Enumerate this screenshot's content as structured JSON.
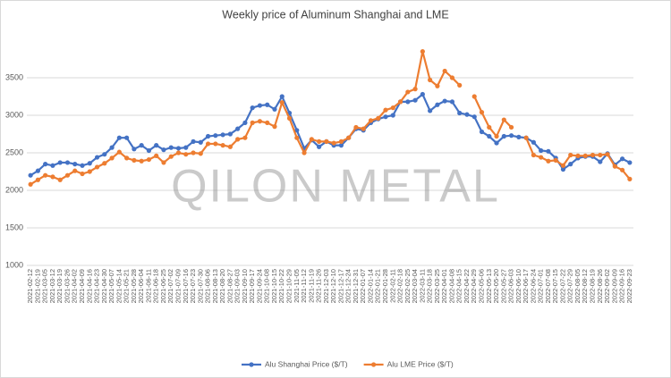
{
  "chart_data": {
    "type": "line",
    "title": "Weekly price of Aluminum Shanghai and LME",
    "categories": [
      "2021-02-12",
      "2021-02-19",
      "2021-03-05",
      "2021-03-12",
      "2021-03-19",
      "2021-03-26",
      "2021-04-02",
      "2021-04-09",
      "2021-04-16",
      "2021-04-23",
      "2021-04-30",
      "2021-05-07",
      "2021-05-14",
      "2021-05-21",
      "2021-05-28",
      "2021-06-04",
      "2021-06-11",
      "2021-06-18",
      "2021-06-25",
      "2021-07-02",
      "2021-07-09",
      "2021-07-16",
      "2021-07-23",
      "2021-07-30",
      "2021-08-06",
      "2021-08-13",
      "2021-08-20",
      "2021-08-27",
      "2021-09-03",
      "2021-09-10",
      "2021-09-17",
      "2021-09-24",
      "2021-10-08",
      "2021-10-15",
      "2021-10-22",
      "2021-10-29",
      "2021-11-05",
      "2021-11-12",
      "2021-11-19",
      "2021-11-26",
      "2021-12-03",
      "2021-12-10",
      "2021-12-17",
      "2021-12-24",
      "2021-12-31",
      "2022-01-07",
      "2022-01-14",
      "2022-01-21",
      "2022-01-28",
      "2022-02-11",
      "2022-02-18",
      "2022-02-25",
      "2022-03-04",
      "2022-03-11",
      "2022-03-18",
      "2022-03-25",
      "2022-04-01",
      "2022-04-08",
      "2022-04-15",
      "2022-04-22",
      "2022-04-29",
      "2022-05-06",
      "2022-05-13",
      "2022-05-20",
      "2022-05-27",
      "2022-06-03",
      "2022-06-10",
      "2022-06-17",
      "2022-06-24",
      "2022-07-01",
      "2022-07-08",
      "2022-07-15",
      "2022-07-22",
      "2022-07-29",
      "2022-08-05",
      "2022-08-12",
      "2022-08-19",
      "2022-08-26",
      "2022-09-02",
      "2022-09-09",
      "2022-09-16",
      "2022-09-23"
    ],
    "series": [
      {
        "name": "Alu Shanghai Price ($/T)",
        "color": "#4472c4",
        "values": [
          2200,
          2260,
          2350,
          2330,
          2370,
          2370,
          2350,
          2330,
          2360,
          2440,
          2480,
          2570,
          2700,
          2700,
          2550,
          2600,
          2530,
          2600,
          2540,
          2570,
          2560,
          2570,
          2650,
          2640,
          2720,
          2730,
          2740,
          2750,
          2820,
          2900,
          3100,
          3130,
          3140,
          3080,
          3250,
          3030,
          2800,
          2560,
          2670,
          2580,
          2650,
          2600,
          2600,
          2700,
          2820,
          2800,
          2900,
          2950,
          2980,
          3000,
          3180,
          3180,
          3200,
          3280,
          3060,
          3140,
          3190,
          3180,
          3030,
          3010,
          2980,
          2780,
          2720,
          2630,
          2720,
          2730,
          2710,
          2700,
          2640,
          2530,
          2520,
          2430,
          2280,
          2350,
          2430,
          2450,
          2450,
          2380,
          2490,
          2340,
          2420,
          2370
        ]
      },
      {
        "name": "Alu LME Price ($/T)",
        "color": "#ed7d31",
        "values": [
          2080,
          2140,
          2200,
          2180,
          2140,
          2200,
          2260,
          2220,
          2250,
          2310,
          2360,
          2430,
          2510,
          2430,
          2400,
          2390,
          2410,
          2460,
          2370,
          2450,
          2500,
          2480,
          2500,
          2490,
          2620,
          2620,
          2600,
          2580,
          2680,
          2700,
          2900,
          2920,
          2900,
          2850,
          3170,
          2960,
          2700,
          2500,
          2680,
          2650,
          2650,
          2630,
          2650,
          2700,
          2840,
          2820,
          2930,
          2960,
          3070,
          3100,
          3180,
          3310,
          3350,
          3850,
          3470,
          3390,
          3590,
          3500,
          3400,
          null,
          3250,
          3040,
          2840,
          2720,
          2940,
          2840,
          null,
          2700,
          2470,
          2440,
          2390,
          2400,
          2330,
          2470,
          2460,
          2460,
          2470,
          2470,
          2480,
          2320,
          2270,
          2150
        ]
      }
    ],
    "ylim": [
      1000,
      4000
    ],
    "yticks": [
      1000,
      1500,
      2000,
      2500,
      3000,
      3500
    ],
    "grid": true,
    "legend": "bottom",
    "watermark": "QILON METAL"
  }
}
